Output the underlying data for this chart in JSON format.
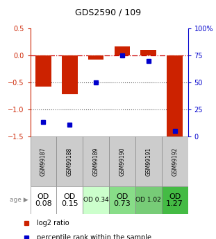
{
  "title": "GDS2590 / 109",
  "samples": [
    "GSM99187",
    "GSM99188",
    "GSM99189",
    "GSM99190",
    "GSM99191",
    "GSM99192"
  ],
  "log2_ratios": [
    -0.58,
    -0.72,
    -0.08,
    0.17,
    0.1,
    -1.55
  ],
  "percentile_ranks": [
    13,
    11,
    50,
    75,
    70,
    5
  ],
  "ylim_left": [
    -1.5,
    0.5
  ],
  "ylim_right": [
    0,
    100
  ],
  "age_labels": [
    "OD\n0.08",
    "OD\n0.15",
    "OD 0.34",
    "OD\n0.73",
    "OD 1.02",
    "OD\n1.27"
  ],
  "age_fontsize": [
    8,
    8,
    6.5,
    8,
    6.5,
    8
  ],
  "age_colors": [
    "#ffffff",
    "#ffffff",
    "#ccffcc",
    "#88dd88",
    "#77cc77",
    "#44bb44"
  ],
  "bar_color": "#cc2200",
  "dot_color": "#0000cc",
  "hline_color": "#cc0000",
  "dotted_color": "#555555",
  "right_axis_color": "#0000cc",
  "left_axis_color": "#cc2200",
  "left_ticks": [
    0.5,
    0.0,
    -0.5,
    -1.0,
    -1.5
  ],
  "right_ticks": [
    100,
    75,
    50,
    25,
    0
  ],
  "bar_width": 0.6,
  "sample_fontsize": 5.5,
  "title_fontsize": 9
}
